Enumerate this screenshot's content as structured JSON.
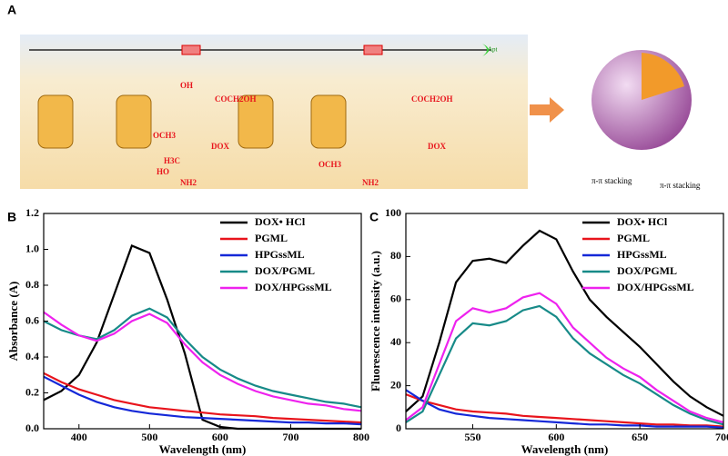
{
  "panel_a": {
    "label": "A",
    "dox": "DOX",
    "oh": "OH",
    "coch2oh": "COCH2OH",
    "och3": "OCH3",
    "nh2": "NH2",
    "h3c": "H3C",
    "ho": "HO",
    "stacking": "π-π stacking",
    "apt": "Apt"
  },
  "chart_data": [
    {
      "type": "line",
      "label": "B",
      "x_label": "Wavelength (nm)",
      "y_label": "Absorbance (A)",
      "x": [
        350,
        375,
        400,
        425,
        450,
        475,
        500,
        525,
        550,
        575,
        600,
        625,
        650,
        675,
        700,
        725,
        750,
        775,
        800
      ],
      "xlim": [
        350,
        800
      ],
      "xticks": [
        400,
        500,
        600,
        700,
        800
      ],
      "ylim": [
        0,
        1.2
      ],
      "yticks": [
        {
          "value": 0,
          "label": "0.0"
        },
        0.2,
        0.4,
        0.6,
        0.8,
        {
          "value": 1,
          "label": "1.0"
        },
        1.2
      ],
      "series": [
        {
          "name": "DOX• HCl",
          "color": "#000000",
          "values": [
            0.16,
            0.21,
            0.3,
            0.48,
            0.75,
            1.02,
            0.98,
            0.72,
            0.42,
            0.05,
            0.01,
            0,
            0,
            0,
            0,
            0,
            0,
            0,
            0
          ]
        },
        {
          "name": "PGML",
          "color": "#e8141c",
          "values": [
            0.31,
            0.26,
            0.22,
            0.19,
            0.16,
            0.14,
            0.12,
            0.11,
            0.1,
            0.09,
            0.08,
            0.075,
            0.07,
            0.06,
            0.055,
            0.05,
            0.045,
            0.04,
            0.035
          ]
        },
        {
          "name": "HPGssML",
          "color": "#1428d8",
          "values": [
            0.29,
            0.24,
            0.19,
            0.15,
            0.12,
            0.1,
            0.085,
            0.075,
            0.065,
            0.06,
            0.055,
            0.05,
            0.045,
            0.04,
            0.035,
            0.035,
            0.03,
            0.03,
            0.025
          ]
        },
        {
          "name": "DOX/PGML",
          "color": "#178a88",
          "values": [
            0.6,
            0.55,
            0.52,
            0.5,
            0.55,
            0.63,
            0.67,
            0.62,
            0.5,
            0.4,
            0.33,
            0.28,
            0.24,
            0.21,
            0.19,
            0.17,
            0.15,
            0.14,
            0.12
          ]
        },
        {
          "name": "DOX/HPGssML",
          "color": "#ee22ee",
          "values": [
            0.65,
            0.58,
            0.52,
            0.49,
            0.53,
            0.6,
            0.64,
            0.59,
            0.47,
            0.37,
            0.3,
            0.25,
            0.21,
            0.18,
            0.16,
            0.14,
            0.13,
            0.11,
            0.1
          ]
        }
      ]
    },
    {
      "type": "line",
      "label": "C",
      "x_label": "Wavelength (nm)",
      "y_label": "Fluorescence intensity (a.u.)",
      "x": [
        510,
        520,
        530,
        540,
        550,
        560,
        570,
        580,
        590,
        600,
        610,
        620,
        630,
        640,
        650,
        660,
        670,
        680,
        690,
        700
      ],
      "xlim": [
        510,
        700
      ],
      "xticks": [
        550,
        600,
        650,
        700
      ],
      "ylim": [
        0,
        100
      ],
      "yticks": [
        0,
        20,
        40,
        60,
        80,
        100
      ],
      "series": [
        {
          "name": "DOX• HCl",
          "color": "#000000",
          "values": [
            8,
            15,
            40,
            68,
            78,
            79,
            77,
            85,
            92,
            88,
            73,
            60,
            52,
            45,
            38,
            30,
            22,
            15,
            10,
            6
          ]
        },
        {
          "name": "PGML",
          "color": "#e8141c",
          "values": [
            16,
            13,
            11,
            9,
            8,
            7.5,
            7,
            6,
            5.5,
            5,
            4.5,
            4,
            3.5,
            3,
            2.5,
            2,
            2,
            1.5,
            1.5,
            1
          ]
        },
        {
          "name": "HPGssML",
          "color": "#1428d8",
          "values": [
            18,
            13,
            9,
            7,
            6,
            5,
            4.5,
            4,
            3.5,
            3,
            2.5,
            2,
            2,
            1.5,
            1.5,
            1,
            1,
            1,
            1,
            0.5
          ]
        },
        {
          "name": "DOX/PGML",
          "color": "#178a88",
          "values": [
            3,
            8,
            25,
            42,
            49,
            48,
            50,
            55,
            57,
            52,
            42,
            35,
            30,
            25,
            21,
            16,
            11,
            7,
            4,
            2
          ]
        },
        {
          "name": "DOX/HPGssML",
          "color": "#ee22ee",
          "values": [
            4,
            10,
            30,
            50,
            56,
            54,
            56,
            61,
            63,
            58,
            47,
            40,
            33,
            28,
            24,
            18,
            13,
            8,
            5,
            3
          ]
        }
      ]
    }
  ]
}
